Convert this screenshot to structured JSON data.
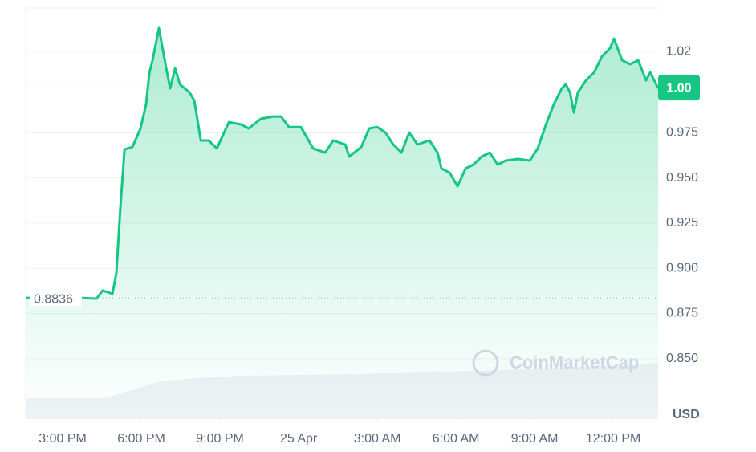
{
  "chart_data": {
    "type": "line",
    "x": [
      13.59,
      15.67,
      16.29,
      16.53,
      16.9,
      17.05,
      17.2,
      17.36,
      17.66,
      17.97,
      18.18,
      18.31,
      18.43,
      18.67,
      18.95,
      19.1,
      19.29,
      19.47,
      19.84,
      20.02,
      20.27,
      20.57,
      20.88,
      21.34,
      21.8,
      22.1,
      22.56,
      23.02,
      23.33,
      23.63,
      24.09,
      24.55,
      25.01,
      25.32,
      25.78,
      25.93,
      26.39,
      26.69,
      27.0,
      27.31,
      27.61,
      27.92,
      28.22,
      28.53,
      28.99,
      29.3,
      29.45,
      29.76,
      30.06,
      30.37,
      30.67,
      30.98,
      31.29,
      31.59,
      31.9,
      32.36,
      32.82,
      33.12,
      33.43,
      33.73,
      34.04,
      34.19,
      34.35,
      34.5,
      34.65,
      34.96,
      35.27,
      35.57,
      35.88,
      36.03,
      36.34,
      36.64,
      36.95,
      37.25,
      37.41,
      37.71
    ],
    "series": [
      {
        "color": "#16c784",
        "values": [
          0.8836,
          0.8836,
          0.8832,
          0.8877,
          0.8859,
          0.8974,
          0.933,
          0.9658,
          0.9671,
          0.9774,
          0.9907,
          1.0084,
          1.0151,
          1.0329,
          1.0107,
          0.9996,
          1.0107,
          1.0018,
          0.9973,
          0.9929,
          0.9707,
          0.9707,
          0.9663,
          0.9809,
          0.9796,
          0.9774,
          0.9827,
          0.984,
          0.984,
          0.9782,
          0.9782,
          0.9663,
          0.964,
          0.9707,
          0.9685,
          0.9618,
          0.9671,
          0.9774,
          0.9782,
          0.9751,
          0.9685,
          0.964,
          0.9751,
          0.9685,
          0.9707,
          0.964,
          0.9552,
          0.9529,
          0.9454,
          0.9552,
          0.9574,
          0.9618,
          0.964,
          0.9574,
          0.9596,
          0.9605,
          0.9596,
          0.9663,
          0.9794,
          0.9907,
          0.9996,
          1.0018,
          0.9973,
          0.9862,
          0.9973,
          1.004,
          1.0084,
          1.0173,
          1.0218,
          1.0271,
          1.0151,
          1.0129,
          1.0151,
          1.004,
          1.0084,
          0.9996
        ]
      }
    ],
    "xlim": [
      13.59,
      37.71
    ],
    "ylim": [
      0.8166,
      1.044
    ],
    "xticks": [
      {
        "value": 15,
        "label": "3:00 PM"
      },
      {
        "value": 18,
        "label": "6:00 PM"
      },
      {
        "value": 21,
        "label": "9:00 PM"
      },
      {
        "value": 24,
        "label": "25 Apr"
      },
      {
        "value": 27,
        "label": "3:00 AM"
      },
      {
        "value": 30,
        "label": "6:00 AM"
      },
      {
        "value": 33,
        "label": "9:00 AM"
      },
      {
        "value": 36,
        "label": "12:00 PM"
      }
    ],
    "yticks": [
      {
        "value": 0.85,
        "label": "0.850"
      },
      0.875,
      {
        "value": 0.9,
        "label": "0.900"
      },
      0.925,
      {
        "value": 0.95,
        "label": "0.950"
      },
      0.975,
      1.02
    ],
    "y_unit": "USD",
    "reference_line": {
      "value": 0.8836,
      "label": "0.8836"
    },
    "current_price": {
      "value": 1.0,
      "label": "1.00"
    },
    "watermark": "CoinMarketCap",
    "grid": true
  }
}
